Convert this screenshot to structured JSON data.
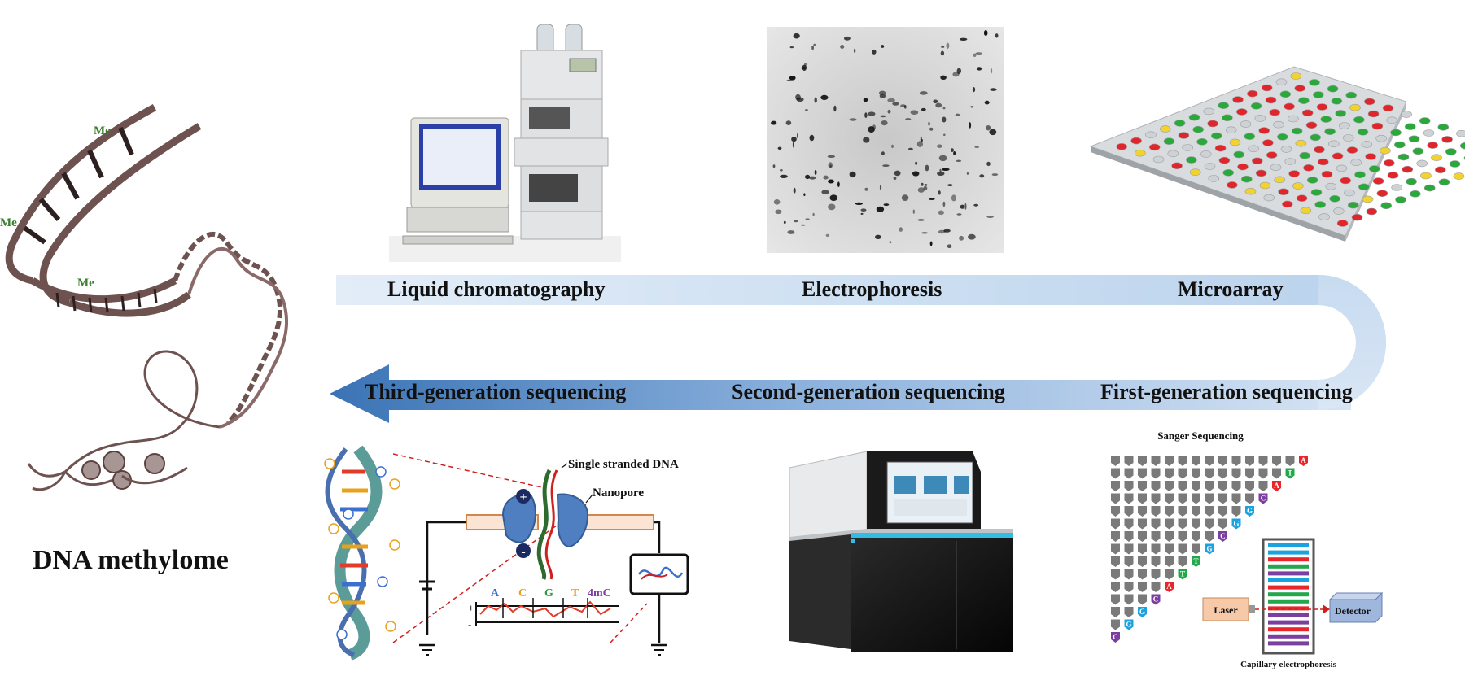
{
  "title": "DNA methylome",
  "dna_marks": [
    "Me",
    "Me",
    "Me"
  ],
  "top_methods": [
    {
      "label": "Liquid chromatography"
    },
    {
      "label": "Electrophoresis"
    },
    {
      "label": "Microarray"
    }
  ],
  "sequencing_methods": [
    {
      "label": "Third-generation sequencing"
    },
    {
      "label": "Second-generation sequencing"
    },
    {
      "label": "First-generation sequencing"
    }
  ],
  "nanopore": {
    "single_strand_label": "Single stranded DNA",
    "nanopore_label": "Nanopore",
    "signal_bases": [
      "A",
      "C",
      "G",
      "T",
      "4mC"
    ],
    "plus_sign": "+",
    "minus_sign": "-"
  },
  "sanger": {
    "title": "Sanger Sequencing",
    "bases": [
      "A",
      "T",
      "A",
      "C",
      "G",
      "G",
      "C",
      "G",
      "T",
      "T",
      "A",
      "C",
      "G",
      "G",
      "C"
    ],
    "laser_label": "Laser",
    "detector_label": "Detector",
    "capillary_label": "Capillary electrophoresis"
  },
  "colors": {
    "band_light": "#dbe8f6",
    "band_dark": "#3e78b8",
    "dna_brown": "#6e5250",
    "methyl_green": "#3a7d2a",
    "base_A": "#e8262b",
    "base_T": "#22a84a",
    "base_C": "#7b3fa0",
    "base_G": "#1aa3e0"
  }
}
